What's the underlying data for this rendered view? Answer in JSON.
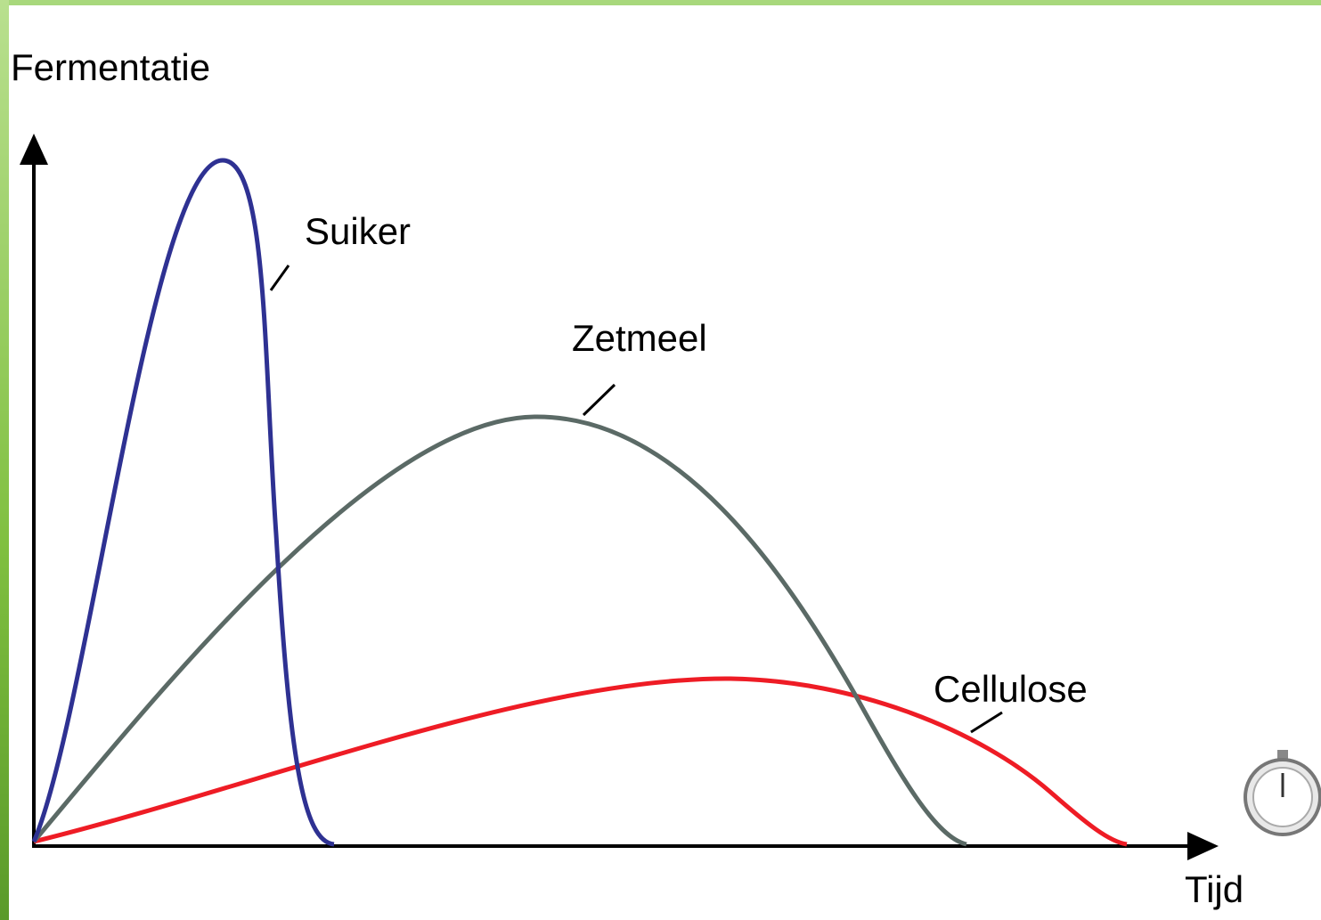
{
  "axes": {
    "y_label": "Fermentatie",
    "x_label": "Tijd"
  },
  "curves": [
    {
      "label": "Suiker"
    },
    {
      "label": "Zetmeel"
    },
    {
      "label": "Cellulose"
    }
  ]
}
